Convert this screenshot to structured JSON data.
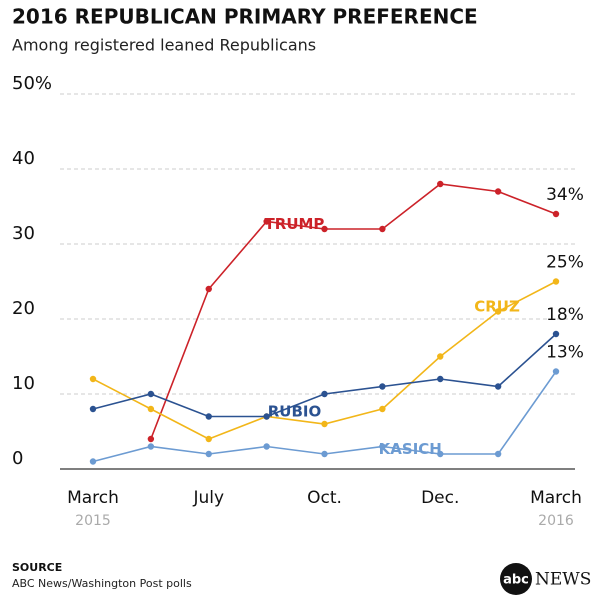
{
  "chart_data": {
    "type": "line",
    "title": "2016 REPUBLICAN PRIMARY PREFERENCE",
    "subtitle": "Among registered leaned Republicans",
    "categories": [
      "March",
      null,
      "July",
      null,
      "Oct.",
      null,
      "Dec.",
      null,
      "March"
    ],
    "category_sublabels": [
      "2015",
      null,
      null,
      null,
      null,
      null,
      null,
      null,
      "2016"
    ],
    "ylim": [
      0,
      50
    ],
    "yticks": [
      0,
      10,
      20,
      30,
      40,
      {
        "value": 50,
        "label": "50%"
      }
    ],
    "grid": true,
    "series": [
      {
        "name": "TRUMP",
        "color": "#cc2229",
        "values": [
          null,
          4,
          24,
          33,
          32,
          32,
          38,
          37,
          34
        ],
        "value_labels": [
          null,
          null,
          null,
          null,
          null,
          null,
          null,
          null,
          "34%"
        ]
      },
      {
        "name": "CRUZ",
        "color": "#f2b619",
        "values": [
          12,
          8,
          4,
          7,
          6,
          8,
          15,
          21,
          25
        ],
        "value_labels": [
          null,
          null,
          null,
          null,
          null,
          null,
          null,
          null,
          "25%"
        ]
      },
      {
        "name": "RUBIO",
        "color": "#2b5291",
        "values": [
          8,
          10,
          7,
          7,
          10,
          11,
          12,
          11,
          18
        ],
        "value_labels": [
          null,
          null,
          null,
          null,
          null,
          null,
          null,
          null,
          "18%"
        ]
      },
      {
        "name": "KASICH",
        "color": "#6c9bd2",
        "values": [
          1,
          3,
          2,
          3,
          2,
          3,
          2,
          2,
          13
        ],
        "value_labels": [
          null,
          null,
          null,
          null,
          null,
          null,
          null,
          null,
          "13%"
        ]
      }
    ],
    "source_heading": "SOURCE",
    "source": "ABC News/Washington Post polls",
    "logo": {
      "mark": "abc",
      "text": "NEWS"
    }
  }
}
